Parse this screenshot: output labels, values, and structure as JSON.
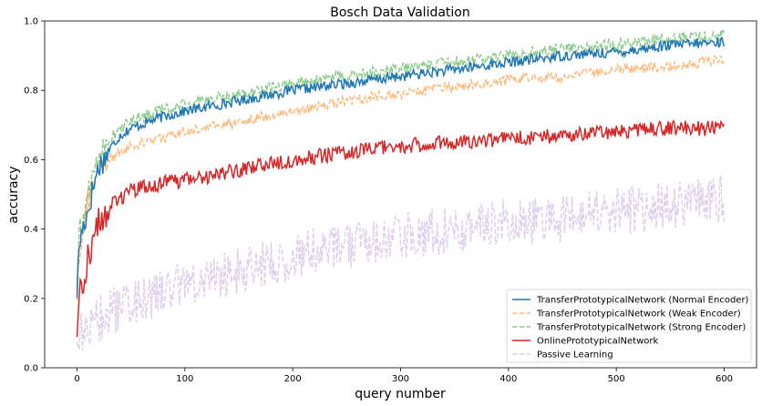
{
  "chart_data": {
    "type": "line",
    "title": "Bosch Data Validation",
    "xlabel": "query number",
    "ylabel": "accuracy",
    "xlim": [
      -30,
      630
    ],
    "ylim": [
      0,
      1.0
    ],
    "xticks": [
      0,
      100,
      200,
      300,
      400,
      500,
      600
    ],
    "yticks": [
      0.0,
      0.2,
      0.4,
      0.6,
      0.8,
      1.0
    ],
    "grid": false,
    "legend_position": "lower-right",
    "x_range": [
      0,
      600
    ],
    "series": [
      {
        "name": "TransferPrototypicalNetwork (Normal Encoder)",
        "color": "#1f77b4",
        "style": "solid",
        "noise": 0.015,
        "points": [
          [
            0,
            0.22
          ],
          [
            2,
            0.35
          ],
          [
            5,
            0.4
          ],
          [
            10,
            0.45
          ],
          [
            15,
            0.52
          ],
          [
            20,
            0.58
          ],
          [
            25,
            0.6
          ],
          [
            30,
            0.63
          ],
          [
            40,
            0.67
          ],
          [
            50,
            0.69
          ],
          [
            75,
            0.72
          ],
          [
            100,
            0.74
          ],
          [
            150,
            0.77
          ],
          [
            200,
            0.8
          ],
          [
            250,
            0.82
          ],
          [
            300,
            0.84
          ],
          [
            350,
            0.86
          ],
          [
            400,
            0.88
          ],
          [
            450,
            0.9
          ],
          [
            500,
            0.91
          ],
          [
            550,
            0.93
          ],
          [
            600,
            0.94
          ]
        ]
      },
      {
        "name": "TransferPrototypicalNetwork (Weak Encoder)",
        "color": "#ff7f0e",
        "style": "dashed",
        "noise": 0.015,
        "points": [
          [
            0,
            0.21
          ],
          [
            2,
            0.33
          ],
          [
            5,
            0.4
          ],
          [
            10,
            0.48
          ],
          [
            15,
            0.53
          ],
          [
            20,
            0.56
          ],
          [
            25,
            0.59
          ],
          [
            30,
            0.6
          ],
          [
            40,
            0.62
          ],
          [
            50,
            0.64
          ],
          [
            75,
            0.66
          ],
          [
            100,
            0.68
          ],
          [
            150,
            0.71
          ],
          [
            200,
            0.74
          ],
          [
            250,
            0.77
          ],
          [
            300,
            0.79
          ],
          [
            350,
            0.81
          ],
          [
            400,
            0.83
          ],
          [
            450,
            0.84
          ],
          [
            500,
            0.86
          ],
          [
            550,
            0.87
          ],
          [
            600,
            0.89
          ]
        ]
      },
      {
        "name": "TransferPrototypicalNetwork (Strong Encoder)",
        "color": "#2ca02c",
        "style": "dashed",
        "noise": 0.018,
        "points": [
          [
            0,
            0.24
          ],
          [
            2,
            0.37
          ],
          [
            5,
            0.42
          ],
          [
            10,
            0.5
          ],
          [
            15,
            0.56
          ],
          [
            20,
            0.61
          ],
          [
            25,
            0.64
          ],
          [
            30,
            0.66
          ],
          [
            40,
            0.69
          ],
          [
            50,
            0.71
          ],
          [
            75,
            0.74
          ],
          [
            100,
            0.76
          ],
          [
            150,
            0.79
          ],
          [
            200,
            0.82
          ],
          [
            250,
            0.84
          ],
          [
            300,
            0.86
          ],
          [
            350,
            0.88
          ],
          [
            400,
            0.9
          ],
          [
            450,
            0.92
          ],
          [
            500,
            0.93
          ],
          [
            550,
            0.95
          ],
          [
            600,
            0.96
          ]
        ]
      },
      {
        "name": "OnlinePrototypicalNetwork",
        "color": "#d62728",
        "style": "solid",
        "noise": 0.022,
        "points": [
          [
            0,
            0.1
          ],
          [
            2,
            0.2
          ],
          [
            5,
            0.25
          ],
          [
            10,
            0.32
          ],
          [
            15,
            0.37
          ],
          [
            20,
            0.42
          ],
          [
            25,
            0.44
          ],
          [
            30,
            0.46
          ],
          [
            40,
            0.49
          ],
          [
            50,
            0.51
          ],
          [
            75,
            0.53
          ],
          [
            100,
            0.54
          ],
          [
            150,
            0.57
          ],
          [
            200,
            0.6
          ],
          [
            250,
            0.62
          ],
          [
            300,
            0.64
          ],
          [
            350,
            0.65
          ],
          [
            400,
            0.66
          ],
          [
            450,
            0.67
          ],
          [
            500,
            0.68
          ],
          [
            550,
            0.69
          ],
          [
            600,
            0.69
          ]
        ]
      },
      {
        "name": "Passive Learning",
        "color": "#9467bd",
        "style": "dashed",
        "noise": 0.07,
        "points": [
          [
            0,
            0.08
          ],
          [
            10,
            0.12
          ],
          [
            20,
            0.14
          ],
          [
            30,
            0.16
          ],
          [
            50,
            0.19
          ],
          [
            75,
            0.21
          ],
          [
            100,
            0.24
          ],
          [
            150,
            0.28
          ],
          [
            200,
            0.32
          ],
          [
            250,
            0.35
          ],
          [
            300,
            0.38
          ],
          [
            350,
            0.4
          ],
          [
            400,
            0.42
          ],
          [
            450,
            0.43
          ],
          [
            500,
            0.45
          ],
          [
            550,
            0.47
          ],
          [
            600,
            0.49
          ]
        ]
      }
    ]
  }
}
